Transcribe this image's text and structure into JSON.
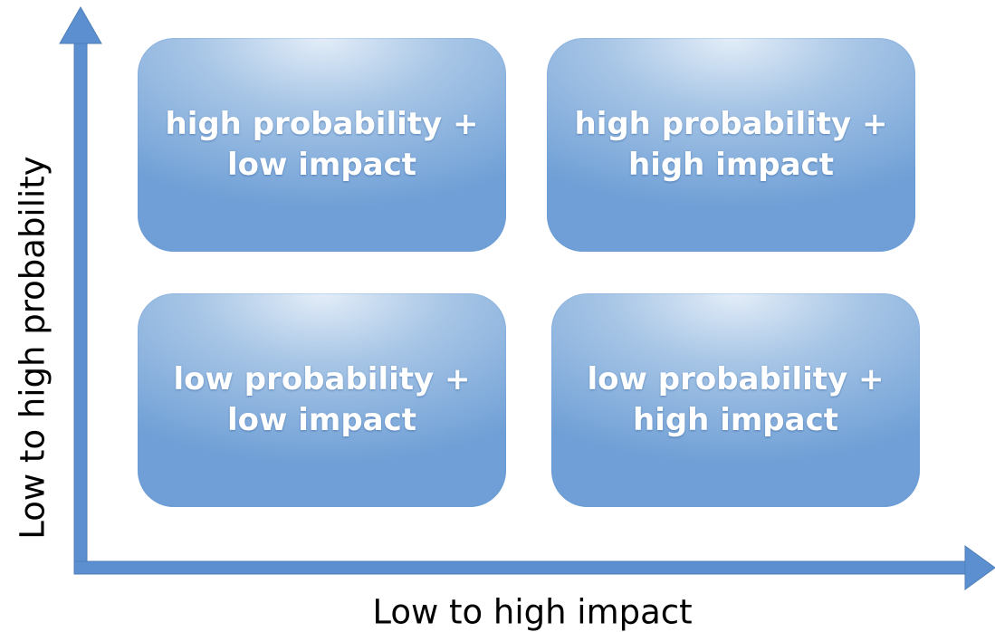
{
  "colors": {
    "axis": "#5b8fd0",
    "axis_outline": "#4f7fb8",
    "quadrant_light": "#e3edf8",
    "quadrant_dark": "#6f9fd6",
    "quadrant_text": "#ffffff"
  },
  "axes": {
    "y_label": "Low to high probability",
    "x_label": "Low to high impact"
  },
  "quadrants": [
    {
      "position": "top-left",
      "line1": "high probability +",
      "line2": "low impact"
    },
    {
      "position": "top-right",
      "line1": "high probability +",
      "line2": "high impact"
    },
    {
      "position": "bottom-left",
      "line1": "low probability +",
      "line2": "low impact"
    },
    {
      "position": "bottom-right",
      "line1": "low probability +",
      "line2": "high impact"
    }
  ]
}
